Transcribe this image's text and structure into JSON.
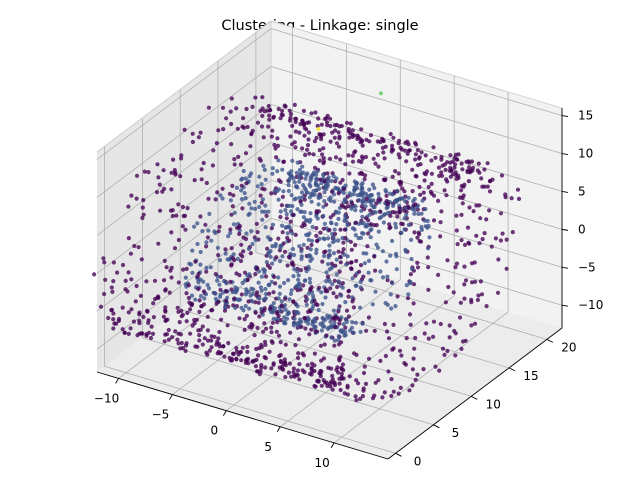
{
  "chart_data": {
    "type": "scatter",
    "title": "Clustering - Linkage: single",
    "projection": "3d",
    "xlim": [
      -12,
      15
    ],
    "ylim": [
      -1,
      22
    ],
    "zlim": [
      -13,
      16
    ],
    "x_ticks": [
      "−10",
      "−5",
      "0",
      "5",
      "10"
    ],
    "y_ticks": [
      "0",
      "5",
      "10",
      "15",
      "20"
    ],
    "z_ticks": [
      "−10",
      "−5",
      "0",
      "5",
      "10",
      "15"
    ],
    "grid": true,
    "colormap": "viridis",
    "series": [
      {
        "cluster": 0,
        "color": "#440154",
        "shape": "outer ring tube",
        "center": [
          0,
          10,
          0
        ],
        "outer_radius": 12,
        "tube_radius": 3,
        "approx_points": 5000
      },
      {
        "cluster": 1,
        "color": "#3b528b",
        "shape": "inner ring tube",
        "center": [
          0,
          10,
          0
        ],
        "outer_radius": 7,
        "tube_radius": 3,
        "approx_points": 3000
      },
      {
        "cluster": 2,
        "color": "#5ec962",
        "shape": "single point",
        "points": [
          [
            1,
            18,
            15
          ]
        ]
      },
      {
        "cluster": 3,
        "color": "#fde725",
        "shape": "small cluster",
        "points": [
          [
            -2,
            14,
            12
          ]
        ]
      }
    ]
  }
}
